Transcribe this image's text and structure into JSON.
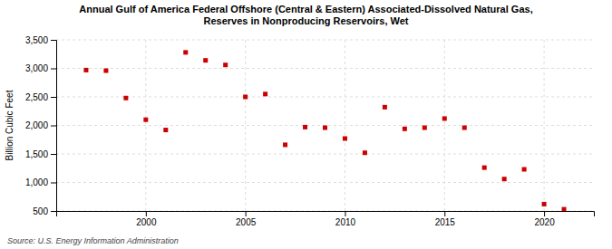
{
  "chart_data": {
    "type": "scatter",
    "title": "Annual Gulf of America Federal Offshore (Central & Eastern) Associated-Dissolved Natural Gas,\nReserves in Nonproducing Reservoirs, Wet",
    "ylabel": "Billion Cubic Feet",
    "annotations": [
      "Source: U.S. Energy Information Administration"
    ],
    "x": [
      1997,
      1998,
      1999,
      2000,
      2001,
      2002,
      2003,
      2004,
      2005,
      2006,
      2007,
      2008,
      2009,
      2010,
      2011,
      2012,
      2013,
      2014,
      2015,
      2016,
      2017,
      2018,
      2019,
      2020,
      2021
    ],
    "values": [
      2970,
      2960,
      2480,
      2100,
      1920,
      3280,
      3140,
      3060,
      2500,
      2550,
      1660,
      1970,
      1960,
      1770,
      1520,
      2320,
      1940,
      1960,
      2120,
      1960,
      1260,
      1060,
      1230,
      620,
      530
    ],
    "color": "#cc0000",
    "marker": "square",
    "grid": true,
    "xlim": [
      1995.5,
      2022.5
    ],
    "xticks": [
      2000,
      2005,
      2010,
      2015,
      2020
    ],
    "ylim": [
      500,
      3500
    ],
    "yticks": [
      500,
      {
        "value": 1000,
        "label": "1,000"
      },
      {
        "value": 1500,
        "label": "1,500"
      },
      {
        "value": 2000,
        "label": "2,000"
      },
      {
        "value": 2500,
        "label": "2,500"
      },
      {
        "value": 3000,
        "label": "3,000"
      },
      {
        "value": 3500,
        "label": "3,500"
      }
    ]
  }
}
